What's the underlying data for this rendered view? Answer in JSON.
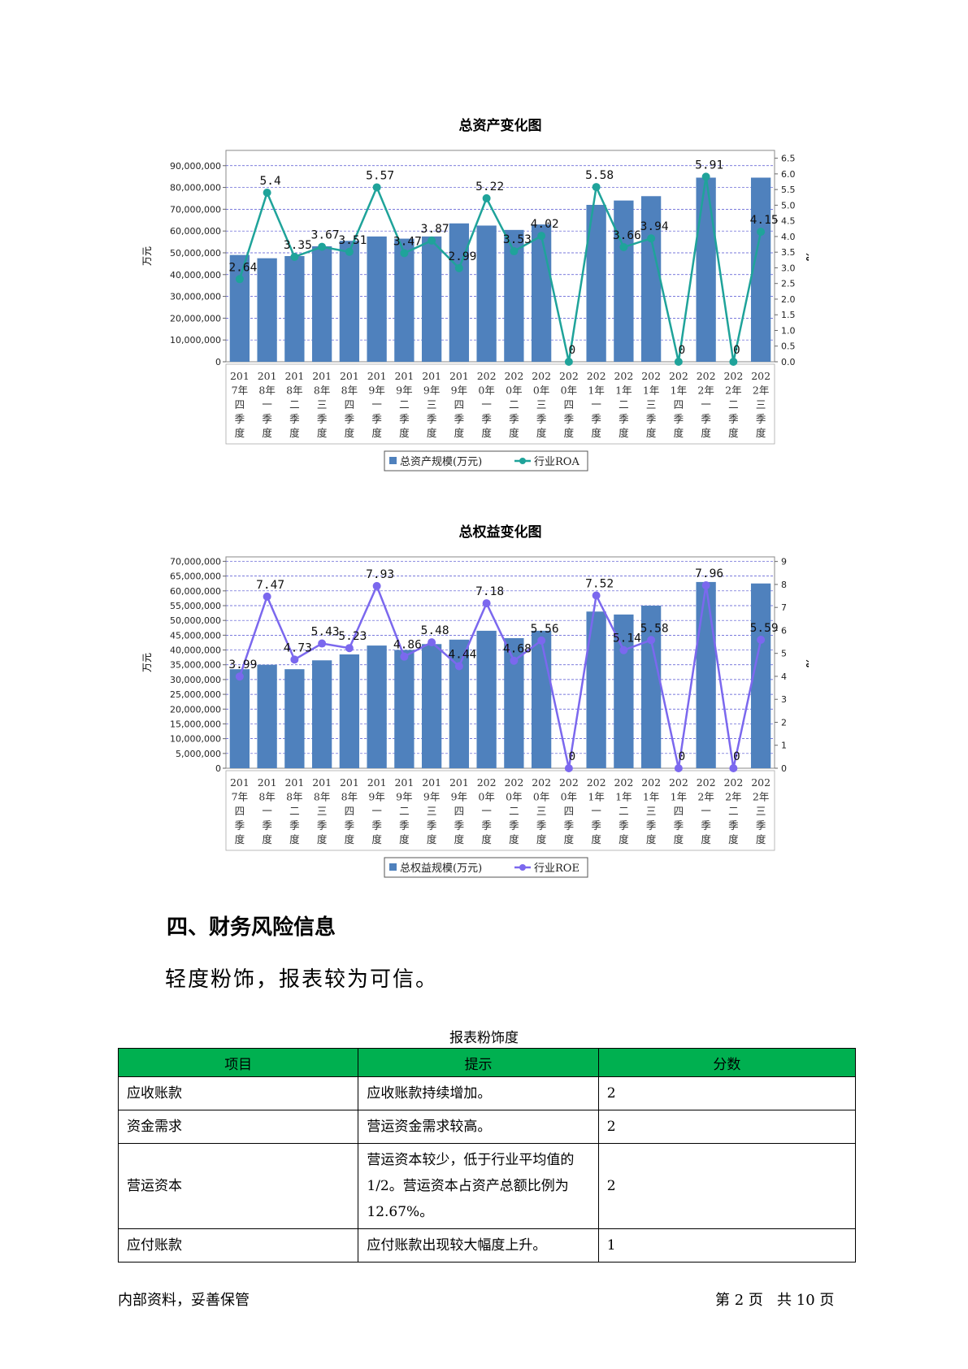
{
  "chart_data": [
    {
      "type": "bar+line",
      "title": "总资产变化图",
      "ylabel_left": "万元",
      "ylabel_right": "%",
      "categories": [
        "2017年四季度",
        "2018年一季度",
        "2018年二季度",
        "2018年三季度",
        "2018年四季度",
        "2019年一季度",
        "2019年二季度",
        "2019年三季度",
        "2019年四季度",
        "2020年一季度",
        "2020年二季度",
        "2020年三季度",
        "2020年四季度",
        "2021年一季度",
        "2021年二季度",
        "2021年三季度",
        "2021年四季度",
        "2022年一季度",
        "2022年二季度",
        "2022年三季度"
      ],
      "category_lines": [
        [
          "201",
          "7年",
          "四",
          "季",
          "度"
        ],
        [
          "201",
          "8年",
          "一",
          "季",
          "度"
        ],
        [
          "201",
          "8年",
          "二",
          "季",
          "度"
        ],
        [
          "201",
          "8年",
          "三",
          "季",
          "度"
        ],
        [
          "201",
          "8年",
          "四",
          "季",
          "度"
        ],
        [
          "201",
          "9年",
          "一",
          "季",
          "度"
        ],
        [
          "201",
          "9年",
          "二",
          "季",
          "度"
        ],
        [
          "201",
          "9年",
          "三",
          "季",
          "度"
        ],
        [
          "201",
          "9年",
          "四",
          "季",
          "度"
        ],
        [
          "202",
          "0年",
          "一",
          "季",
          "度"
        ],
        [
          "202",
          "0年",
          "二",
          "季",
          "度"
        ],
        [
          "202",
          "0年",
          "三",
          "季",
          "度"
        ],
        [
          "202",
          "0年",
          "四",
          "季",
          "度"
        ],
        [
          "202",
          "1年",
          "一",
          "季",
          "度"
        ],
        [
          "202",
          "1年",
          "二",
          "季",
          "度"
        ],
        [
          "202",
          "1年",
          "三",
          "季",
          "度"
        ],
        [
          "202",
          "1年",
          "四",
          "季",
          "度"
        ],
        [
          "202",
          "2年",
          "一",
          "季",
          "度"
        ],
        [
          "202",
          "2年",
          "二",
          "季",
          "度"
        ],
        [
          "202",
          "2年",
          "三",
          "季",
          "度"
        ]
      ],
      "series": [
        {
          "name": "总资产规模(万元)",
          "kind": "bar",
          "axis": "left",
          "color": "#4f81bd",
          "values": [
            49000000,
            47500000,
            48500000,
            53000000,
            55500000,
            57500000,
            56500000,
            57500000,
            63500000,
            62500000,
            60500000,
            63000000,
            0,
            72000000,
            74000000,
            76000000,
            0,
            84500000,
            0,
            84500000
          ]
        },
        {
          "name": "行业ROA",
          "kind": "line",
          "axis": "right",
          "color": "#1fa39a",
          "values": [
            2.64,
            5.4,
            3.35,
            3.67,
            3.51,
            5.57,
            3.47,
            3.87,
            2.99,
            5.22,
            3.53,
            4.02,
            0,
            5.58,
            3.66,
            3.94,
            0,
            5.91,
            0,
            4.15
          ],
          "labels": [
            "2.64",
            "5.4",
            "3.35",
            "3.67",
            "3.51",
            "5.57",
            "3.47",
            "3.87",
            "2.99",
            "5.22",
            "3.53",
            "4.02",
            "0",
            "5.58",
            "3.66",
            "3.94",
            "0",
            "5.91",
            "0",
            "4.15"
          ]
        }
      ],
      "left_ticks": [
        "0",
        "10,000,000",
        "20,000,000",
        "30,000,000",
        "40,000,000",
        "50,000,000",
        "60,000,000",
        "70,000,000",
        "80,000,000",
        "90,000,000"
      ],
      "left_max": 97000000,
      "right_ticks": [
        "0.0",
        "0.5",
        "1.0",
        "1.5",
        "2.0",
        "2.5",
        "3.0",
        "3.5",
        "4.0",
        "4.5",
        "5.0",
        "5.5",
        "6.0",
        "6.5"
      ],
      "right_max": 6.75,
      "grid": true,
      "legend_position": "bottom-center"
    },
    {
      "type": "bar+line",
      "title": "总权益变化图",
      "ylabel_left": "万元",
      "ylabel_right": "%",
      "categories": [
        "2017年四季度",
        "2018年一季度",
        "2018年二季度",
        "2018年三季度",
        "2018年四季度",
        "2019年一季度",
        "2019年二季度",
        "2019年三季度",
        "2019年四季度",
        "2020年一季度",
        "2020年二季度",
        "2020年三季度",
        "2020年四季度",
        "2021年一季度",
        "2021年二季度",
        "2021年三季度",
        "2021年四季度",
        "2022年一季度",
        "2022年二季度",
        "2022年三季度"
      ],
      "category_lines": [
        [
          "201",
          "7年",
          "四",
          "季",
          "度"
        ],
        [
          "201",
          "8年",
          "一",
          "季",
          "度"
        ],
        [
          "201",
          "8年",
          "二",
          "季",
          "度"
        ],
        [
          "201",
          "8年",
          "三",
          "季",
          "度"
        ],
        [
          "201",
          "8年",
          "四",
          "季",
          "度"
        ],
        [
          "201",
          "9年",
          "一",
          "季",
          "度"
        ],
        [
          "201",
          "9年",
          "二",
          "季",
          "度"
        ],
        [
          "201",
          "9年",
          "三",
          "季",
          "度"
        ],
        [
          "201",
          "9年",
          "四",
          "季",
          "度"
        ],
        [
          "202",
          "0年",
          "一",
          "季",
          "度"
        ],
        [
          "202",
          "0年",
          "二",
          "季",
          "度"
        ],
        [
          "202",
          "0年",
          "三",
          "季",
          "度"
        ],
        [
          "202",
          "0年",
          "四",
          "季",
          "度"
        ],
        [
          "202",
          "1年",
          "一",
          "季",
          "度"
        ],
        [
          "202",
          "1年",
          "二",
          "季",
          "度"
        ],
        [
          "202",
          "1年",
          "三",
          "季",
          "度"
        ],
        [
          "202",
          "1年",
          "四",
          "季",
          "度"
        ],
        [
          "202",
          "2年",
          "一",
          "季",
          "度"
        ],
        [
          "202",
          "2年",
          "二",
          "季",
          "度"
        ],
        [
          "202",
          "2年",
          "三",
          "季",
          "度"
        ]
      ],
      "series": [
        {
          "name": "总权益规模(万元)",
          "kind": "bar",
          "axis": "left",
          "color": "#4f81bd",
          "values": [
            33500000,
            35000000,
            33500000,
            36500000,
            38500000,
            41500000,
            40000000,
            42000000,
            43500000,
            46500000,
            44000000,
            46500000,
            0,
            53000000,
            52000000,
            55000000,
            0,
            63000000,
            0,
            62500000
          ]
        },
        {
          "name": "行业ROE",
          "kind": "line",
          "axis": "right",
          "color": "#7b68ee",
          "values": [
            3.99,
            7.47,
            4.73,
            5.43,
            5.23,
            7.93,
            4.86,
            5.48,
            4.44,
            7.18,
            4.68,
            5.56,
            0,
            7.52,
            5.14,
            5.58,
            0,
            7.96,
            0,
            5.59
          ],
          "labels": [
            "3.99",
            "7.47",
            "4.73",
            "5.43",
            "5.23",
            "7.93",
            "4.86",
            "5.48",
            "4.44",
            "7.18",
            "4.68",
            "5.56",
            "0",
            "7.52",
            "5.14",
            "5.58",
            "0",
            "7.96",
            "0",
            "5.59"
          ]
        }
      ],
      "left_ticks": [
        "0",
        "5,000,000",
        "10,000,000",
        "15,000,000",
        "20,000,000",
        "25,000,000",
        "30,000,000",
        "35,000,000",
        "40,000,000",
        "45,000,000",
        "50,000,000",
        "55,000,000",
        "60,000,000",
        "65,000,000",
        "70,000,000"
      ],
      "left_max": 71500000,
      "right_ticks": [
        "0",
        "1",
        "2",
        "3",
        "4",
        "5",
        "6",
        "7",
        "8",
        "9"
      ],
      "right_max": 9.2,
      "grid": true,
      "legend_position": "bottom-center"
    }
  ],
  "section": {
    "heading": "四、财务风险信息",
    "text": "轻度粉饰，报表较为可信。"
  },
  "table": {
    "caption": "报表粉饰度",
    "headers": [
      "项目",
      "提示",
      "分数"
    ],
    "rows": [
      {
        "item": "应收账款",
        "hint": "应收账款持续增加。",
        "score": "2"
      },
      {
        "item": "资金需求",
        "hint": "营运资金需求较高。",
        "score": "2"
      },
      {
        "item": "营运资本",
        "hint": "营运资本较少，低于行业平均值的1/2。营运资本占资产总额比例为12.67%。",
        "score": "2"
      },
      {
        "item": "应付账款",
        "hint": "应付账款出现较大幅度上升。",
        "score": "1"
      }
    ]
  },
  "footer": {
    "left": "内部资料，妥善保管",
    "right": "第 2 页   共 10 页"
  }
}
